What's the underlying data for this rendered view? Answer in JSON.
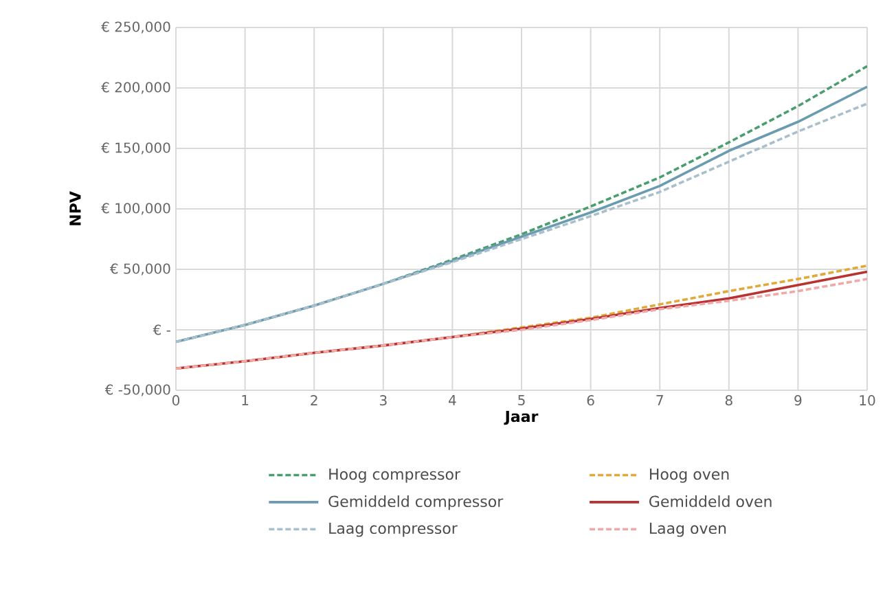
{
  "chart_data": {
    "type": "line",
    "xlabel": "Jaar",
    "ylabel": "NPV",
    "x": [
      0,
      1,
      2,
      3,
      4,
      5,
      6,
      7,
      8,
      9,
      10
    ],
    "xlim": [
      0,
      10
    ],
    "xticks": [
      0,
      1,
      2,
      3,
      4,
      5,
      6,
      7,
      8,
      9,
      10
    ],
    "ylim": [
      -50000,
      250000
    ],
    "yticks": [
      {
        "value": -50000,
        "label": "€ -50,000"
      },
      {
        "value": 0,
        "label": "€ -"
      },
      {
        "value": 50000,
        "label": "€ 50,000"
      },
      {
        "value": 100000,
        "label": "€ 100,000"
      },
      {
        "value": 150000,
        "label": "€ 150,000"
      },
      {
        "value": 200000,
        "label": "€ 200,000"
      },
      {
        "value": 250000,
        "label": "€ 250,000"
      }
    ],
    "grid": true,
    "legend": "bottom",
    "marker": "none",
    "series": [
      {
        "name": "Hoog compressor",
        "color": "#4a9e6e",
        "line_style": "dashed",
        "values": [
          -10000,
          4000,
          20000,
          38000,
          58000,
          79000,
          102000,
          126000,
          155000,
          185000,
          218000
        ]
      },
      {
        "name": "Hoog oven",
        "color": "#e0a93a",
        "line_style": "dashed",
        "values": [
          -32000,
          -26000,
          -19000,
          -13000,
          -6000,
          2000,
          10000,
          21000,
          32000,
          42000,
          53000
        ]
      },
      {
        "name": "Gemiddeld compressor",
        "color": "#6a9bb0",
        "line_style": "solid",
        "values": [
          -10000,
          4000,
          20000,
          38000,
          57000,
          77000,
          97000,
          119000,
          148000,
          172000,
          201000
        ]
      },
      {
        "name": "Gemiddeld oven",
        "color": "#b83232",
        "line_style": "solid",
        "values": [
          -32000,
          -26000,
          -19000,
          -13000,
          -6000,
          1000,
          9000,
          18000,
          26000,
          37000,
          48000
        ]
      },
      {
        "name": "Laag compressor",
        "color": "#a9c0cc",
        "line_style": "dashed",
        "values": [
          -10000,
          4000,
          20000,
          38000,
          56000,
          75000,
          94000,
          114000,
          139000,
          164000,
          187000
        ]
      },
      {
        "name": "Laag oven",
        "color": "#f0a8a8",
        "line_style": "dashed",
        "values": [
          -32000,
          -26000,
          -19000,
          -13000,
          -6000,
          0,
          8000,
          17000,
          24000,
          32000,
          42000
        ]
      }
    ]
  }
}
